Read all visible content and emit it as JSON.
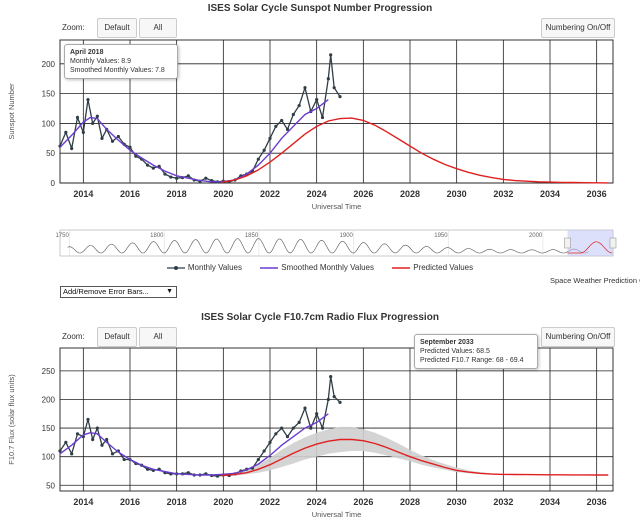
{
  "chart1": {
    "title": "ISES Solar Cycle Sunspot Number Progression",
    "zoom_label": "Zoom:",
    "btn_default": "Default",
    "btn_all": "All",
    "btn_numbering": "Numbering On/Off",
    "tooltip": {
      "title": "April 2018",
      "line1": "Monthly Values: 8.9",
      "line2": "Smoothed Monthly Values: 7.8"
    }
  },
  "chart2": {
    "title": "ISES Solar Cycle F10.7cm Radio Flux Progression",
    "zoom_label": "Zoom:",
    "btn_default": "Default",
    "btn_all": "All",
    "btn_numbering": "Numbering On/Off",
    "tooltip": {
      "title": "September 2033",
      "line1": "Predicted Values: 68.5",
      "line2": "Predicted F10.7 Range: 68 - 69.4"
    }
  },
  "navigator": {
    "ticks": [
      "1750",
      "1800",
      "1850",
      "1900",
      "1950",
      "2000"
    ]
  },
  "legend": {
    "monthly": "Monthly Values",
    "smoothed": "Smoothed Monthly Values",
    "predicted": "Predicted Values"
  },
  "credit": "Space Weather Prediction C",
  "dropdown": "Add/Remove Error Bars...",
  "colors": {
    "monthly": "#2f3e46",
    "smoothed": "#6a3ecf",
    "predicted": "#e02020",
    "band": "#cfcfcf"
  },
  "chart_data": [
    {
      "type": "line",
      "title": "ISES Solar Cycle Sunspot Number Progression",
      "xlabel": "Universal Time",
      "ylabel": "Sunspot Number",
      "xlim": [
        2013.0,
        2036.7
      ],
      "ylim": [
        0,
        240
      ],
      "yticks": [
        0,
        50,
        100,
        150,
        200
      ],
      "xticks": [
        2014,
        2016,
        2018,
        2020,
        2022,
        2024,
        2026,
        2028,
        2030,
        2032,
        2034,
        2036
      ],
      "grid": true,
      "series": [
        {
          "name": "Monthly Values",
          "x": [
            2013.0,
            2013.25,
            2013.5,
            2013.75,
            2014.0,
            2014.2,
            2014.4,
            2014.6,
            2014.8,
            2015.0,
            2015.25,
            2015.5,
            2015.75,
            2016.0,
            2016.25,
            2016.5,
            2016.75,
            2017.0,
            2017.25,
            2017.5,
            2017.75,
            2018.0,
            2018.25,
            2018.5,
            2018.75,
            2019.0,
            2019.25,
            2019.5,
            2019.75,
            2020.0,
            2020.25,
            2020.5,
            2020.75,
            2021.0,
            2021.25,
            2021.5,
            2021.75,
            2022.0,
            2022.25,
            2022.5,
            2022.75,
            2023.0,
            2023.25,
            2023.5,
            2023.75,
            2024.0,
            2024.25,
            2024.5,
            2024.6,
            2024.75,
            2025.0
          ],
          "y": [
            62,
            85,
            58,
            110,
            85,
            140,
            100,
            112,
            75,
            90,
            70,
            78,
            65,
            60,
            45,
            40,
            30,
            25,
            28,
            15,
            10,
            8,
            9,
            12,
            5,
            3,
            8,
            4,
            2,
            3,
            2,
            5,
            12,
            15,
            20,
            40,
            55,
            75,
            95,
            105,
            90,
            115,
            130,
            160,
            120,
            140,
            110,
            175,
            215,
            160,
            145
          ]
        },
        {
          "name": "Smoothed Monthly Values",
          "x": [
            2013.0,
            2013.5,
            2014.0,
            2014.3,
            2014.6,
            2015.0,
            2015.5,
            2016.0,
            2016.5,
            2017.0,
            2017.5,
            2018.0,
            2018.5,
            2019.0,
            2019.5,
            2019.9,
            2020.5,
            2021.0,
            2021.5,
            2022.0,
            2022.5,
            2023.0,
            2023.5,
            2024.0,
            2024.5
          ],
          "y": [
            60,
            80,
            102,
            110,
            108,
            90,
            72,
            55,
            42,
            30,
            20,
            12,
            8,
            4,
            2,
            2,
            5,
            15,
            30,
            50,
            75,
            95,
            115,
            125,
            140
          ]
        },
        {
          "name": "Predicted Values",
          "x": [
            2019.9,
            2020.5,
            2021.0,
            2021.5,
            2022.0,
            2022.5,
            2023.0,
            2023.5,
            2024.0,
            2024.5,
            2025.0,
            2025.5,
            2026.0,
            2026.5,
            2027.0,
            2027.5,
            2028.0,
            2028.5,
            2029.0,
            2029.5,
            2030.0,
            2030.5,
            2031.0,
            2031.5,
            2032.0,
            2032.5,
            2033.0,
            2033.5,
            2034.0,
            2034.5,
            2035.0,
            2035.5,
            2036.0,
            2036.5
          ],
          "y": [
            1,
            5,
            12,
            22,
            35,
            50,
            66,
            82,
            95,
            104,
            108,
            109,
            105,
            97,
            86,
            74,
            62,
            50,
            40,
            31,
            24,
            18,
            13,
            9,
            6,
            4,
            3,
            2,
            1.5,
            1,
            0.8,
            0.5,
            0.3,
            0.2
          ]
        }
      ]
    },
    {
      "type": "line",
      "title": "ISES Solar Cycle F10.7cm Radio Flux Progression",
      "xlabel": "Universal Time",
      "ylabel": "F10.7 Flux (solar flux units)",
      "xlim": [
        2013.0,
        2036.7
      ],
      "ylim": [
        40,
        290
      ],
      "yticks": [
        50,
        100,
        150,
        200,
        250
      ],
      "xticks": [
        2014,
        2016,
        2018,
        2020,
        2022,
        2024,
        2026,
        2028,
        2030,
        2032,
        2034,
        2036
      ],
      "grid": true,
      "series": [
        {
          "name": "Monthly Values",
          "x": [
            2013.0,
            2013.25,
            2013.5,
            2013.75,
            2014.0,
            2014.2,
            2014.4,
            2014.6,
            2014.8,
            2015.0,
            2015.25,
            2015.5,
            2015.75,
            2016.0,
            2016.25,
            2016.5,
            2016.75,
            2017.0,
            2017.25,
            2017.5,
            2017.75,
            2018.0,
            2018.25,
            2018.5,
            2018.75,
            2019.0,
            2019.25,
            2019.5,
            2019.75,
            2020.0,
            2020.25,
            2020.5,
            2020.75,
            2021.0,
            2021.25,
            2021.5,
            2021.75,
            2022.0,
            2022.25,
            2022.5,
            2022.75,
            2023.0,
            2023.25,
            2023.5,
            2023.75,
            2024.0,
            2024.25,
            2024.5,
            2024.6,
            2024.75,
            2025.0
          ],
          "y": [
            110,
            125,
            105,
            140,
            135,
            165,
            130,
            150,
            120,
            130,
            105,
            110,
            95,
            95,
            88,
            85,
            78,
            76,
            78,
            72,
            70,
            70,
            70,
            72,
            68,
            68,
            70,
            67,
            66,
            68,
            67,
            70,
            75,
            78,
            80,
            95,
            110,
            125,
            140,
            150,
            135,
            150,
            160,
            185,
            150,
            175,
            150,
            200,
            240,
            205,
            195
          ]
        },
        {
          "name": "Smoothed Monthly Values",
          "x": [
            2013.0,
            2013.5,
            2014.0,
            2014.3,
            2014.6,
            2015.0,
            2015.5,
            2016.0,
            2016.5,
            2017.0,
            2017.5,
            2018.0,
            2018.5,
            2019.0,
            2019.5,
            2019.9,
            2020.5,
            2021.0,
            2021.5,
            2022.0,
            2022.5,
            2023.0,
            2023.5,
            2024.0,
            2024.5
          ],
          "y": [
            105,
            120,
            138,
            142,
            140,
            125,
            108,
            95,
            85,
            78,
            74,
            70,
            69,
            68,
            68,
            69,
            71,
            77,
            87,
            102,
            120,
            135,
            150,
            160,
            175
          ]
        },
        {
          "name": "Predicted Values",
          "x": [
            2019.9,
            2020.5,
            2021.0,
            2021.5,
            2022.0,
            2022.5,
            2023.0,
            2023.5,
            2024.0,
            2024.5,
            2025.0,
            2025.5,
            2026.0,
            2026.5,
            2027.0,
            2027.5,
            2028.0,
            2028.5,
            2029.0,
            2029.5,
            2030.0,
            2030.5,
            2031.0,
            2031.5,
            2032.0,
            2032.5,
            2033.0,
            2033.5,
            2034.0,
            2034.5,
            2035.0,
            2035.5,
            2036.0,
            2036.5
          ],
          "y": [
            67,
            69,
            72,
            78,
            86,
            96,
            106,
            115,
            122,
            127,
            130,
            130,
            128,
            123,
            116,
            108,
            100,
            93,
            87,
            81,
            76,
            73,
            71,
            69.5,
            69,
            68.8,
            68.6,
            68.5,
            68.4,
            68.3,
            68.2,
            68.1,
            68,
            68
          ]
        },
        {
          "name": "Predicted F10.7 Range",
          "x": [
            2019.9,
            2020.5,
            2021.0,
            2021.5,
            2022.0,
            2022.5,
            2023.0,
            2023.5,
            2024.0,
            2024.5,
            2025.0,
            2025.5,
            2026.0,
            2026.5,
            2027.0,
            2027.5,
            2028.0,
            2028.5,
            2029.0,
            2029.5,
            2030.0,
            2030.5,
            2031.0,
            2031.5,
            2032.0,
            2032.5,
            2033.0,
            2033.5,
            2034.0,
            2034.5,
            2035.0,
            2035.5,
            2036.0,
            2036.5
          ],
          "low": [
            66,
            67,
            69,
            72,
            76,
            82,
            88,
            95,
            100,
            105,
            108,
            110,
            110,
            107,
            102,
            97,
            92,
            86,
            81,
            77,
            73,
            71,
            69.5,
            68.8,
            68.4,
            68.2,
            68,
            68,
            67.8,
            67.8,
            67.7,
            67.6,
            67.5,
            67.5
          ],
          "high": [
            69,
            72,
            77,
            86,
            98,
            112,
            124,
            134,
            142,
            148,
            152,
            152,
            148,
            142,
            133,
            123,
            112,
            102,
            94,
            87,
            81,
            76,
            73,
            71,
            70,
            69.6,
            69.4,
            69.2,
            69,
            68.9,
            68.8,
            68.7,
            68.6,
            68.6
          ]
        }
      ]
    }
  ]
}
